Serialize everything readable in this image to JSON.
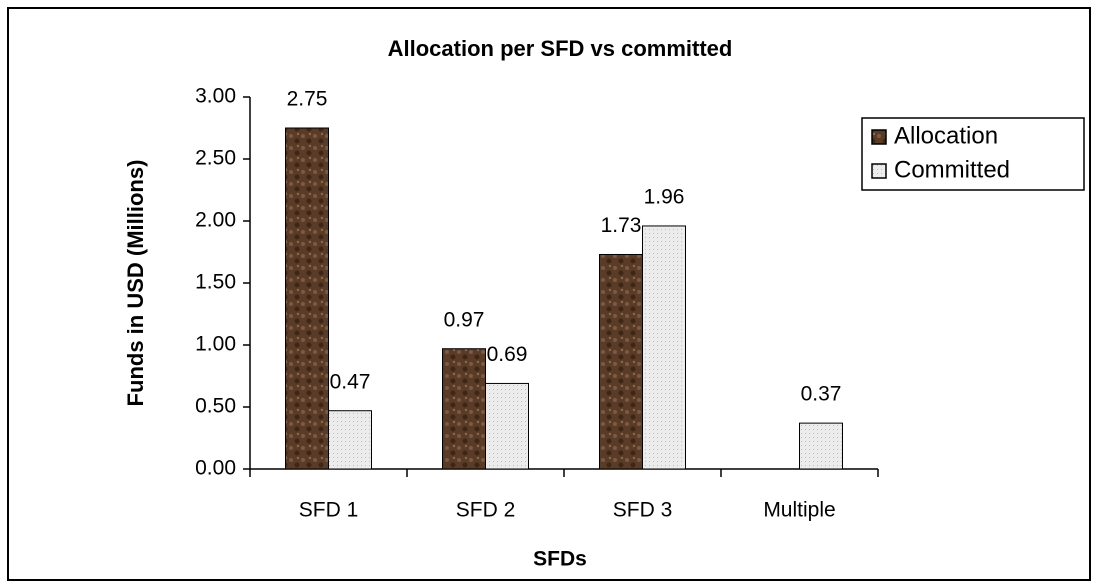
{
  "chart_data": {
    "type": "bar",
    "title": "Allocation per SFD vs committed",
    "x_label": "SFDs",
    "y_label": "Funds in USD (Millions)",
    "categories": [
      "SFD 1",
      "SFD 2",
      "SFD 3",
      "Multiple"
    ],
    "series": [
      {
        "name": "Allocation",
        "color": "#5a3b27",
        "values": [
          2.75,
          0.97,
          1.73,
          null
        ]
      },
      {
        "name": "Committed",
        "color": "#e6e6e6",
        "values": [
          0.47,
          0.69,
          1.96,
          0.37
        ]
      }
    ],
    "ylim": [
      0,
      3
    ],
    "yticks": [
      {
        "value": 0,
        "label": "0.00"
      },
      {
        "value": 0.5,
        "label": "0.50"
      },
      {
        "value": 1,
        "label": "1.00"
      },
      {
        "value": 1.5,
        "label": "1.50"
      },
      {
        "value": 2,
        "label": "2.00"
      },
      {
        "value": 2.5,
        "label": "2.50"
      },
      {
        "value": 3,
        "label": "3.00"
      }
    ],
    "grid": false,
    "legend": "right"
  }
}
